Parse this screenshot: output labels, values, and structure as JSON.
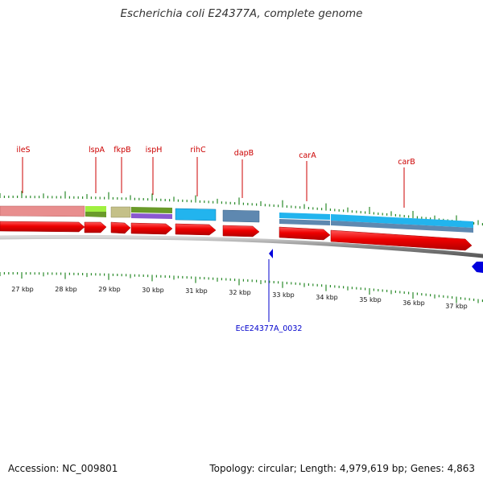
{
  "map": {
    "title": "Escherichia coli E24377A, complete genome",
    "accession_text": "Accession: NC_009801",
    "stats_text": "Topology: circular; Length: 4,979,619 bp; Genes: 4,863"
  },
  "scale": {
    "tick_labels": [
      "27 kbp",
      "28 kbp",
      "29 kbp",
      "30 kbp",
      "31 kbp",
      "32 kbp",
      "33 kbp",
      "34 kbp",
      "35 kbp",
      "36 kbp",
      "37 kbp"
    ]
  },
  "features": {
    "genes": [
      {
        "label": "ileS"
      },
      {
        "label": "lspA"
      },
      {
        "label": "fkpB"
      },
      {
        "label": "ispH"
      },
      {
        "label": "rihC"
      },
      {
        "label": "dapB"
      },
      {
        "label": "carA"
      },
      {
        "label": "carB"
      }
    ],
    "reverse_cds": [
      {
        "label": "EcE24377A_0032"
      }
    ]
  },
  "colors": {
    "gene_label": "#cc0000",
    "cds_forward": "#ee0000",
    "cds_reverse": "#0000dd",
    "tick": "#2a8a2a",
    "backbone": "#888888"
  }
}
